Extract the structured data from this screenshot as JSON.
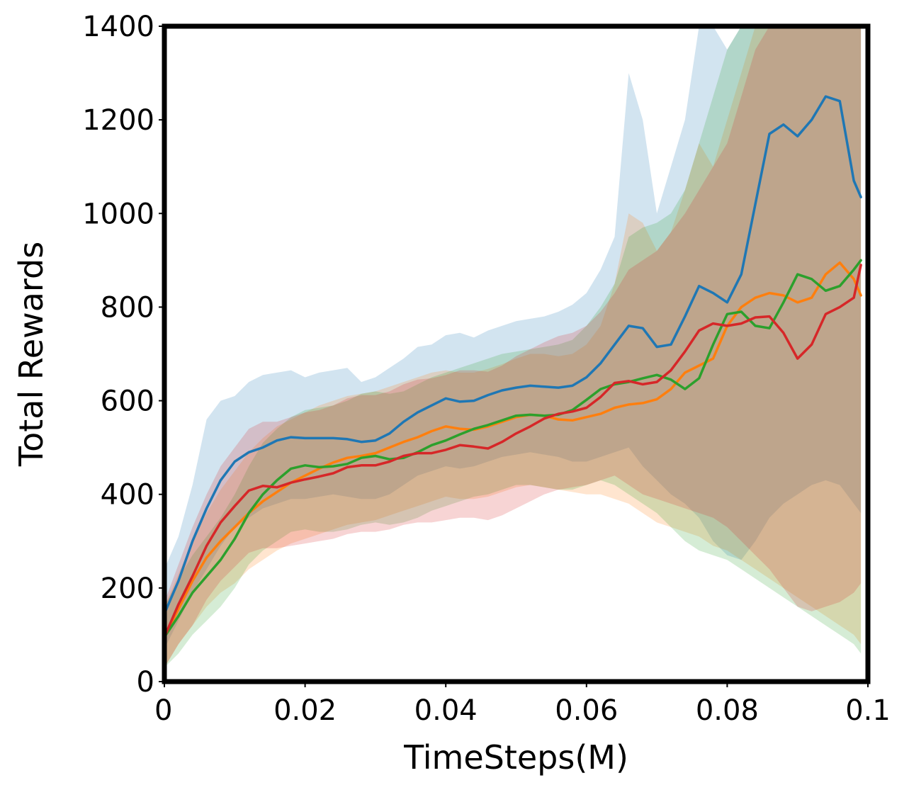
{
  "chart_data": {
    "type": "line",
    "title": "",
    "xlabel": "TimeSteps(M)",
    "ylabel": "Total Rewards",
    "xlim": [
      0,
      0.1
    ],
    "ylim": [
      0,
      1400
    ],
    "xticks": [
      0,
      0.02,
      0.04,
      0.06,
      0.08,
      0.1
    ],
    "xtick_labels": [
      "0",
      "0.02",
      "0.04",
      "0.06",
      "0.08",
      "0.1"
    ],
    "yticks": [
      0,
      200,
      400,
      600,
      800,
      1000,
      1200,
      1400
    ],
    "ytick_labels": [
      "0",
      "200",
      "400",
      "600",
      "800",
      "1000",
      "1200",
      "1400"
    ],
    "grid": false,
    "legend": "none",
    "x": [
      0,
      0.002,
      0.004,
      0.006,
      0.008,
      0.01,
      0.012,
      0.014,
      0.016,
      0.018,
      0.02,
      0.022,
      0.024,
      0.026,
      0.028,
      0.03,
      0.032,
      0.034,
      0.036,
      0.038,
      0.04,
      0.042,
      0.044,
      0.046,
      0.048,
      0.05,
      0.052,
      0.054,
      0.056,
      0.058,
      0.06,
      0.062,
      0.064,
      0.066,
      0.068,
      0.07,
      0.072,
      0.074,
      0.076,
      0.078,
      0.08,
      0.082,
      0.084,
      0.086,
      0.088,
      0.09,
      0.092,
      0.094,
      0.096,
      0.098,
      0.099
    ],
    "series": [
      {
        "color": "#1f77b4",
        "values": [
          145,
          215,
          300,
          370,
          430,
          470,
          490,
          500,
          515,
          522,
          520,
          520,
          520,
          518,
          512,
          515,
          530,
          555,
          575,
          590,
          605,
          598,
          600,
          612,
          622,
          628,
          632,
          630,
          628,
          632,
          650,
          680,
          720,
          760,
          755,
          715,
          720,
          780,
          845,
          830,
          810,
          870,
          1020,
          1170,
          1190,
          1165,
          1200,
          1250,
          1240,
          1070,
          1035
        ],
        "upper": [
          240,
          310,
          420,
          560,
          600,
          610,
          640,
          655,
          660,
          665,
          650,
          660,
          665,
          670,
          640,
          650,
          670,
          690,
          715,
          720,
          740,
          745,
          735,
          750,
          760,
          770,
          775,
          780,
          790,
          805,
          830,
          880,
          950,
          1300,
          1200,
          1000,
          1100,
          1200,
          1500,
          1400,
          1350,
          1500,
          1500,
          1500,
          1500,
          1500,
          1500,
          1500,
          1500,
          1500,
          1500
        ],
        "lower": [
          70,
          130,
          190,
          240,
          290,
          330,
          350,
          370,
          380,
          390,
          390,
          395,
          400,
          395,
          390,
          390,
          400,
          420,
          440,
          450,
          460,
          455,
          460,
          470,
          480,
          485,
          490,
          485,
          480,
          470,
          470,
          480,
          490,
          500,
          460,
          430,
          400,
          380,
          350,
          300,
          270,
          260,
          300,
          350,
          380,
          400,
          420,
          430,
          420,
          380,
          360
        ]
      },
      {
        "color": "#ff7f0e",
        "values": [
          95,
          155,
          215,
          265,
          300,
          330,
          360,
          385,
          405,
          425,
          440,
          455,
          468,
          478,
          482,
          488,
          500,
          512,
          522,
          535,
          545,
          540,
          538,
          545,
          555,
          565,
          570,
          568,
          560,
          558,
          565,
          572,
          585,
          592,
          595,
          603,
          625,
          660,
          675,
          690,
          760,
          800,
          820,
          830,
          825,
          810,
          820,
          870,
          895,
          860,
          825
        ],
        "upper": [
          160,
          230,
          300,
          360,
          410,
          450,
          490,
          520,
          545,
          560,
          575,
          590,
          600,
          610,
          615,
          620,
          630,
          640,
          650,
          660,
          665,
          660,
          660,
          668,
          678,
          690,
          700,
          700,
          695,
          700,
          720,
          760,
          850,
          1000,
          980,
          920,
          960,
          1050,
          1150,
          1100,
          1200,
          1300,
          1400,
          1400,
          1400,
          1400,
          1400,
          1400,
          1400,
          1400,
          1400
        ],
        "lower": [
          30,
          80,
          120,
          160,
          190,
          210,
          240,
          260,
          280,
          295,
          305,
          315,
          325,
          335,
          340,
          345,
          355,
          365,
          375,
          385,
          395,
          390,
          390,
          395,
          405,
          415,
          420,
          415,
          410,
          405,
          400,
          400,
          390,
          380,
          360,
          340,
          330,
          320,
          310,
          290,
          280,
          260,
          240,
          220,
          200,
          180,
          160,
          140,
          120,
          100,
          80
        ]
      },
      {
        "color": "#2ca02c",
        "values": [
          95,
          140,
          190,
          225,
          260,
          305,
          360,
          400,
          430,
          455,
          462,
          458,
          460,
          465,
          478,
          482,
          475,
          478,
          490,
          505,
          515,
          528,
          540,
          548,
          558,
          568,
          570,
          568,
          570,
          580,
          602,
          625,
          635,
          640,
          648,
          655,
          645,
          625,
          648,
          720,
          785,
          790,
          760,
          755,
          810,
          870,
          860,
          835,
          845,
          880,
          900
        ],
        "upper": [
          160,
          220,
          270,
          310,
          350,
          400,
          460,
          510,
          540,
          565,
          580,
          585,
          590,
          600,
          615,
          620,
          615,
          620,
          635,
          650,
          660,
          670,
          680,
          690,
          700,
          705,
          710,
          715,
          720,
          730,
          760,
          800,
          850,
          950,
          970,
          980,
          1000,
          1050,
          1150,
          1250,
          1350,
          1400,
          1400,
          1400,
          1400,
          1400,
          1400,
          1400,
          1400,
          1400,
          1400
        ],
        "lower": [
          30,
          60,
          100,
          130,
          160,
          200,
          250,
          280,
          300,
          320,
          325,
          320,
          320,
          325,
          335,
          340,
          335,
          340,
          350,
          365,
          375,
          385,
          395,
          400,
          410,
          420,
          420,
          415,
          410,
          410,
          420,
          430,
          420,
          400,
          380,
          360,
          330,
          300,
          280,
          270,
          260,
          240,
          220,
          200,
          180,
          160,
          140,
          120,
          100,
          80,
          60
        ]
      },
      {
        "color": "#d62728",
        "values": [
          95,
          165,
          225,
          290,
          340,
          375,
          408,
          418,
          415,
          425,
          432,
          438,
          445,
          458,
          462,
          462,
          470,
          482,
          488,
          488,
          495,
          505,
          502,
          498,
          512,
          530,
          545,
          562,
          572,
          577,
          585,
          608,
          638,
          642,
          635,
          640,
          665,
          705,
          750,
          765,
          760,
          765,
          778,
          780,
          745,
          690,
          720,
          785,
          800,
          820,
          890
        ],
        "upper": [
          170,
          250,
          330,
          400,
          460,
          500,
          540,
          555,
          555,
          565,
          575,
          580,
          590,
          605,
          612,
          612,
          620,
          635,
          645,
          648,
          655,
          665,
          665,
          662,
          675,
          695,
          710,
          725,
          738,
          745,
          760,
          790,
          830,
          880,
          900,
          920,
          960,
          1000,
          1050,
          1100,
          1150,
          1250,
          1350,
          1400,
          1400,
          1400,
          1400,
          1400,
          1400,
          1400,
          1400
        ],
        "lower": [
          30,
          80,
          120,
          175,
          215,
          245,
          275,
          285,
          285,
          290,
          295,
          300,
          305,
          315,
          320,
          320,
          325,
          335,
          340,
          340,
          345,
          350,
          350,
          345,
          355,
          370,
          385,
          400,
          410,
          415,
          420,
          430,
          440,
          420,
          400,
          390,
          380,
          370,
          360,
          350,
          330,
          300,
          270,
          240,
          200,
          160,
          150,
          160,
          170,
          190,
          210
        ]
      }
    ]
  }
}
